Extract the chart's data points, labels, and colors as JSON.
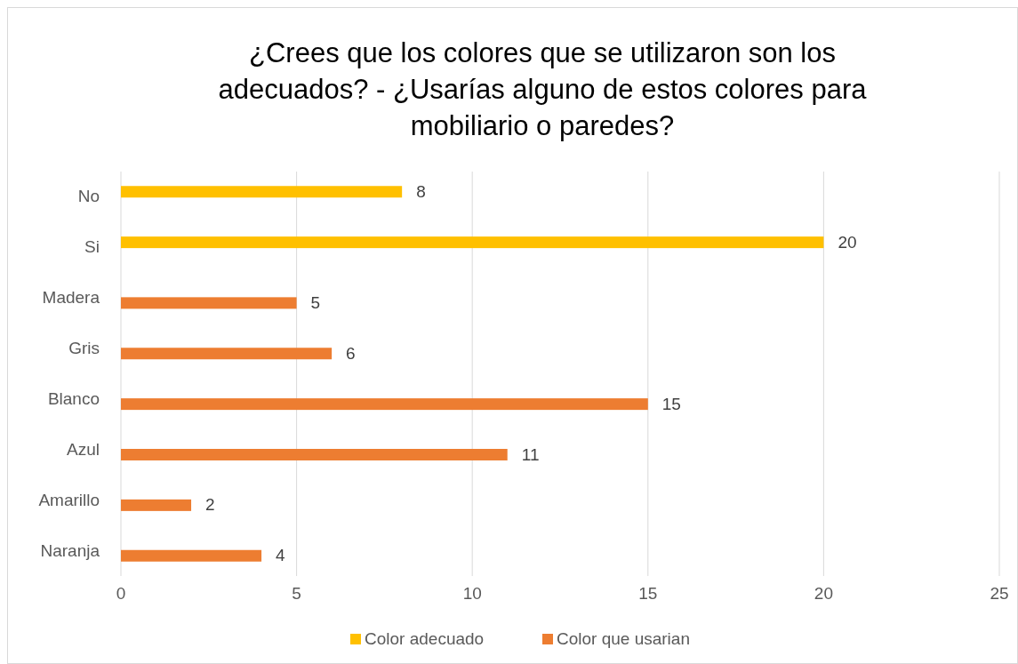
{
  "chart_data": {
    "type": "bar",
    "orientation": "horizontal",
    "title": "¿Crees que los colores que se utilizaron son los adecuados?  -  ¿Usarías alguno de estos colores para mobiliario o paredes?",
    "categories": [
      "No",
      "Si",
      "Madera",
      "Gris",
      "Blanco",
      "Azul",
      "Amarillo",
      "Naranja"
    ],
    "series": [
      {
        "name": "Color adecuado",
        "color": "#ffc000",
        "values": [
          8,
          20,
          null,
          null,
          null,
          null,
          null,
          null
        ]
      },
      {
        "name": "Color que usarian",
        "color": "#ed7d31",
        "values": [
          null,
          null,
          5,
          6,
          15,
          11,
          2,
          4
        ]
      }
    ],
    "xlim": [
      0,
      25
    ],
    "xticks": [
      0,
      5,
      10,
      15,
      20,
      25
    ],
    "grid": "x",
    "legend": "bottom",
    "data_labels": true
  }
}
